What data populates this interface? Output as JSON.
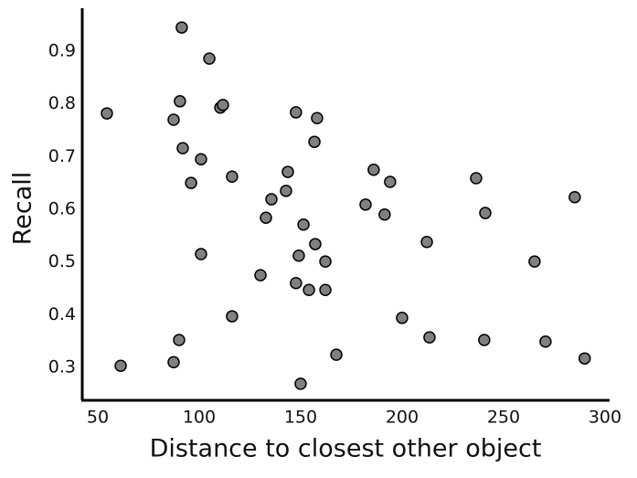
{
  "chart_data": {
    "type": "scatter",
    "xlabel": "Distance to closest other object",
    "ylabel": "Recall",
    "color": "#808080",
    "xlim": [
      42,
      302
    ],
    "ylim": [
      0.24,
      0.98
    ],
    "xticks": [
      50,
      100,
      150,
      200,
      250,
      300
    ],
    "yticks": [
      0.3,
      0.4,
      0.5,
      0.6,
      0.7,
      0.8,
      0.9
    ],
    "x": [
      91.4,
      105,
      54.5,
      90.5,
      87.4,
      110.4,
      111.7,
      147.7,
      158.1,
      91.9,
      100.9,
      156.8,
      96,
      116.2,
      143.7,
      186,
      194.1,
      236.5,
      285.1,
      142.8,
      135.6,
      132.9,
      182,
      191.4,
      241,
      151.4,
      157.2,
      212.2,
      100.9,
      149.1,
      162.2,
      265.3,
      130.2,
      147.7,
      154.1,
      162.2,
      116.2,
      200,
      90.1,
      213.5,
      240.5,
      270.7,
      87.4,
      61.3,
      167.6,
      290,
      150
    ],
    "values": [
      0.945,
      0.886,
      0.782,
      0.805,
      0.77,
      0.793,
      0.798,
      0.784,
      0.773,
      0.716,
      0.695,
      0.728,
      0.65,
      0.662,
      0.671,
      0.675,
      0.652,
      0.659,
      0.623,
      0.635,
      0.619,
      0.584,
      0.609,
      0.59,
      0.593,
      0.571,
      0.534,
      0.538,
      0.515,
      0.512,
      0.501,
      0.501,
      0.475,
      0.46,
      0.447,
      0.447,
      0.397,
      0.394,
      0.352,
      0.357,
      0.352,
      0.349,
      0.31,
      0.303,
      0.324,
      0.317,
      0.269
    ]
  }
}
